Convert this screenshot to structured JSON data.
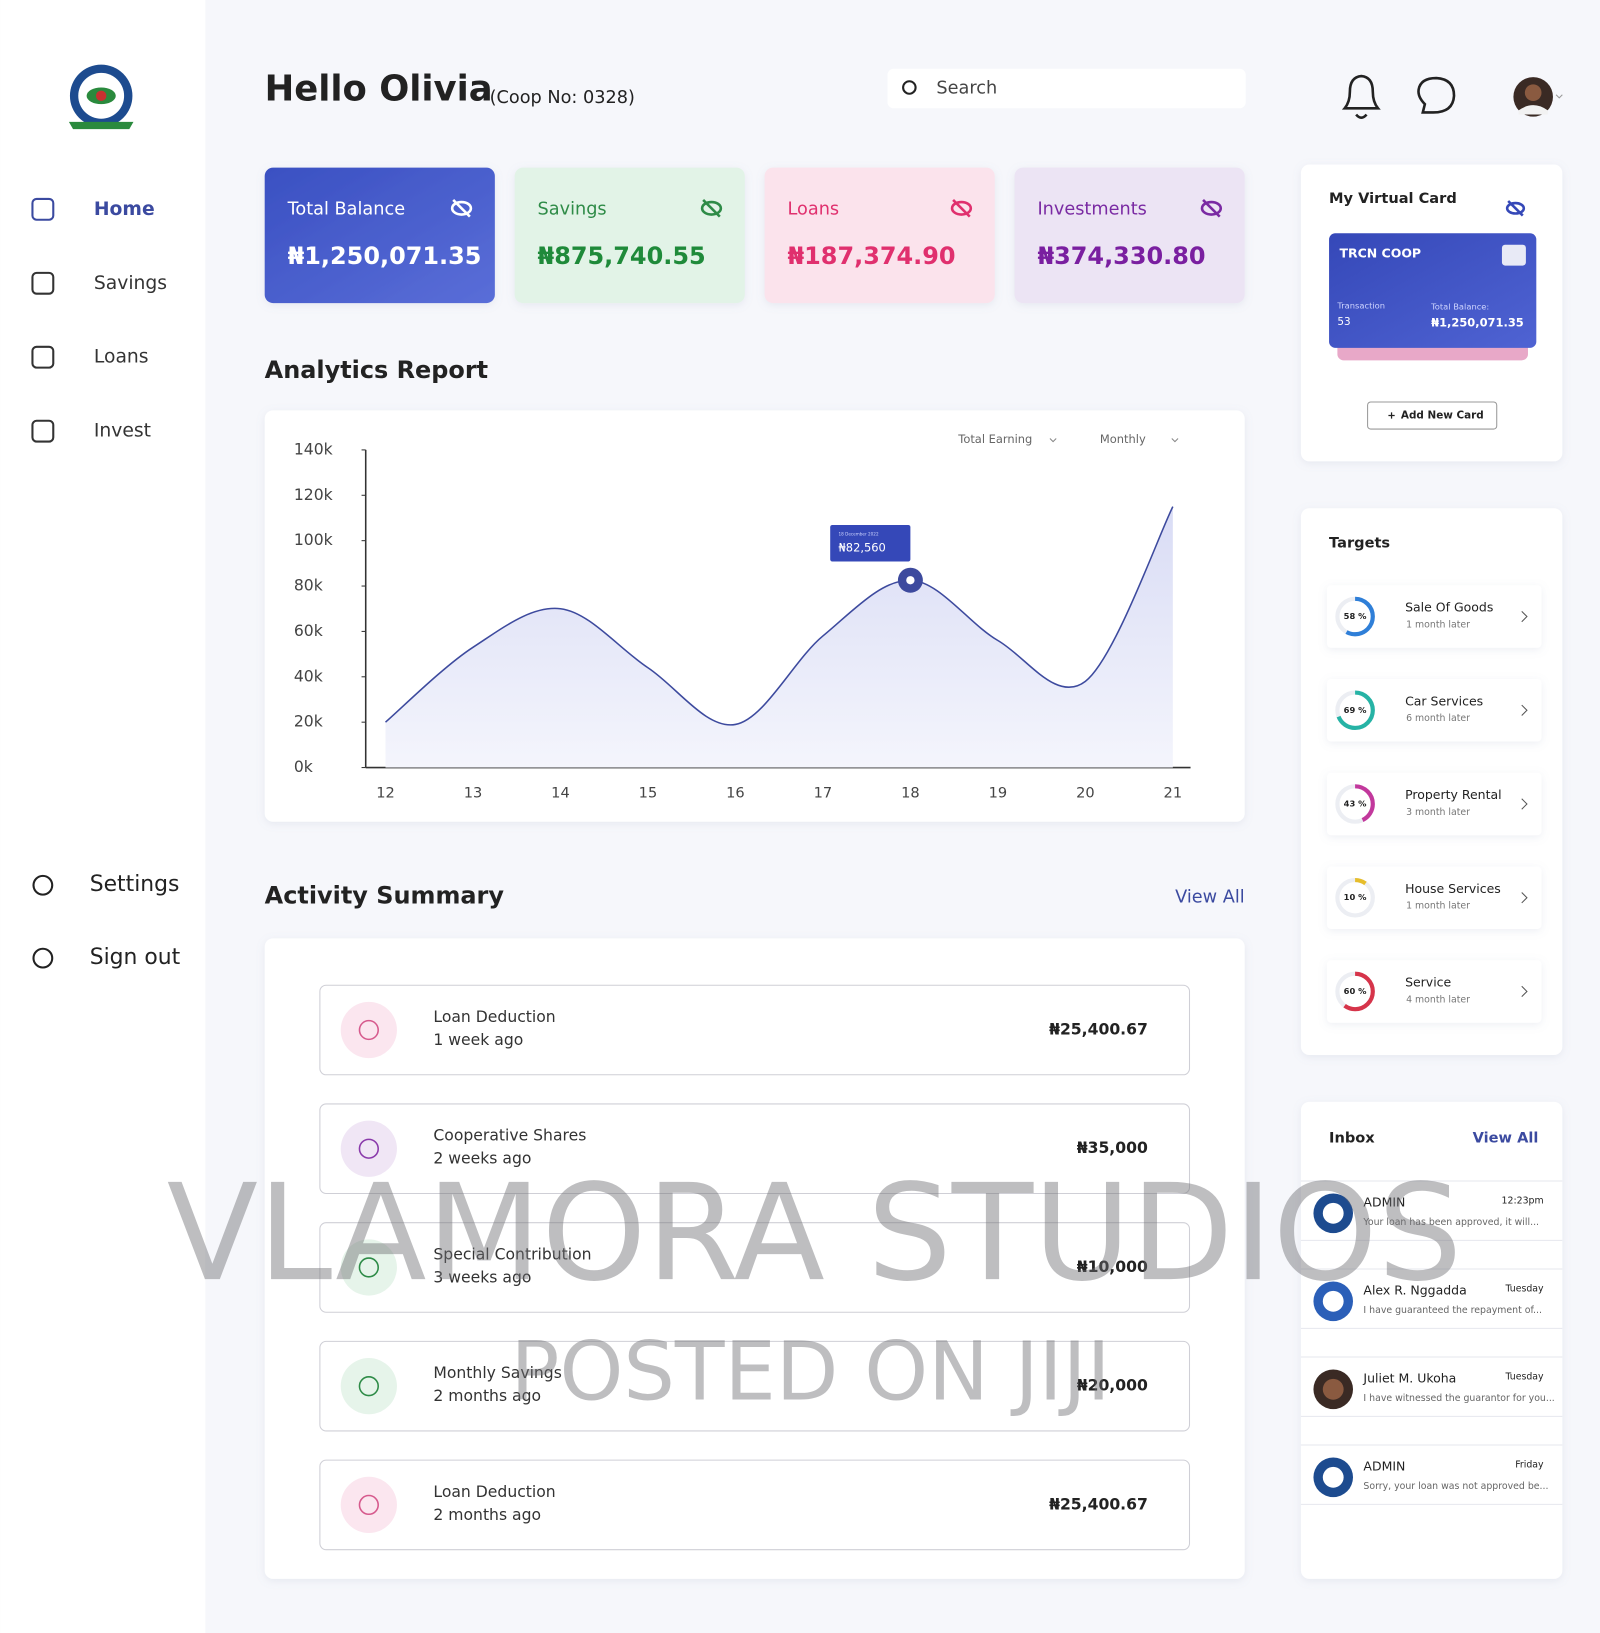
{
  "sidebar": {
    "nav": [
      "Home",
      "Savings",
      "Loans",
      "Invest"
    ],
    "bottom": [
      "Settings",
      "Sign out"
    ]
  },
  "header": {
    "greeting": "Hello Olivia",
    "coop": "(Coop No: 0328)",
    "search": "Search"
  },
  "balances": [
    {
      "label": "Total Balance",
      "amount": "₦1,250,071.35"
    },
    {
      "label": "Savings",
      "amount": "₦875,740.55"
    },
    {
      "label": "Loans",
      "amount": "₦187,374.90"
    },
    {
      "label": "Investments",
      "amount": "₦374,330.80"
    }
  ],
  "sections": {
    "analytics": "Analytics Report",
    "activity": "Activity Summary",
    "view_all": "View All"
  },
  "chart_data": {
    "type": "line",
    "filters": [
      "Total Earning",
      "Monthly"
    ],
    "categories": [
      "12",
      "13",
      "14",
      "15",
      "16",
      "17",
      "18",
      "19",
      "20",
      "21"
    ],
    "values": [
      20000,
      53000,
      70000,
      44000,
      19000,
      58000,
      82560,
      56000,
      38000,
      115000
    ],
    "value_labels": [
      null,
      null,
      null,
      null,
      null,
      null,
      "₦82,560",
      null,
      null,
      null
    ],
    "annotation": "18 December 2022",
    "color": "#3d4a9e",
    "ylim": [
      0,
      140000
    ],
    "yticks": [
      {
        "value": 0,
        "label": "0k"
      },
      {
        "value": 20000,
        "label": "20k"
      },
      {
        "value": 40000,
        "label": "40k"
      },
      {
        "value": 60000,
        "label": "60k"
      },
      {
        "value": 80000,
        "label": "80k"
      },
      {
        "value": 100000,
        "label": "100k"
      },
      {
        "value": 120000,
        "label": "120k"
      },
      {
        "value": 140000,
        "label": "140k"
      }
    ]
  },
  "activity": [
    {
      "title": "Loan Deduction",
      "time": "1 week ago",
      "amount": "₦25,400.67"
    },
    {
      "title": "Cooperative Shares",
      "time": "2 weeks ago",
      "amount": "₦35,000"
    },
    {
      "title": "Special Contribution",
      "time": "3 weeks ago",
      "amount": "₦10,000"
    },
    {
      "title": "Monthly Savings",
      "time": "2 months ago",
      "amount": "₦20,000"
    },
    {
      "title": "Loan Deduction",
      "time": "2 months ago",
      "amount": "₦25,400.67"
    }
  ],
  "virtual_card": {
    "title": "My Virtual Card",
    "brand": "TRCN COOP",
    "transaction_label": "Transaction",
    "transaction": "53",
    "balance_label": "Total Balance:",
    "balance": "₦1,250,071.35",
    "add": "Add New Card"
  },
  "targets": {
    "title": "Targets",
    "items": [
      {
        "progress": 58,
        "progress_label": "58 %",
        "color": "#2f7fd8",
        "name": "Sale Of Goods",
        "due": "1 month later"
      },
      {
        "progress": 69,
        "progress_label": "69 %",
        "color": "#26b3a5",
        "name": "Car Services",
        "due": "6 month later"
      },
      {
        "progress": 43,
        "progress_label": "43 %",
        "color": "#c2389c",
        "name": "Property Rental",
        "due": "3 month later"
      },
      {
        "progress": 10,
        "progress_label": "10 %",
        "color": "#e6bd2c",
        "name": "House Services",
        "due": "1 month later"
      },
      {
        "progress": 60,
        "progress_label": "60 %",
        "color": "#d6344a",
        "name": "Service",
        "due": "4 month later"
      }
    ]
  },
  "inbox": {
    "title": "Inbox",
    "view_all": "View All",
    "messages": [
      {
        "sender": "ADMIN",
        "time": "12:23pm",
        "preview": "Your loan has been approved, it will..."
      },
      {
        "sender": "Alex R. Nggadda",
        "time": "Tuesday",
        "preview": "I have guaranteed the repayment of..."
      },
      {
        "sender": "Juliet M. Ukoha",
        "time": "Tuesday",
        "preview": "I have witnessed the guarantor for you..."
      },
      {
        "sender": "ADMIN",
        "time": "Friday",
        "preview": "Sorry, your loan was not approved be..."
      }
    ]
  },
  "watermark": [
    "VLAMORA STUDIOS",
    "POSTED ON JIJI"
  ]
}
